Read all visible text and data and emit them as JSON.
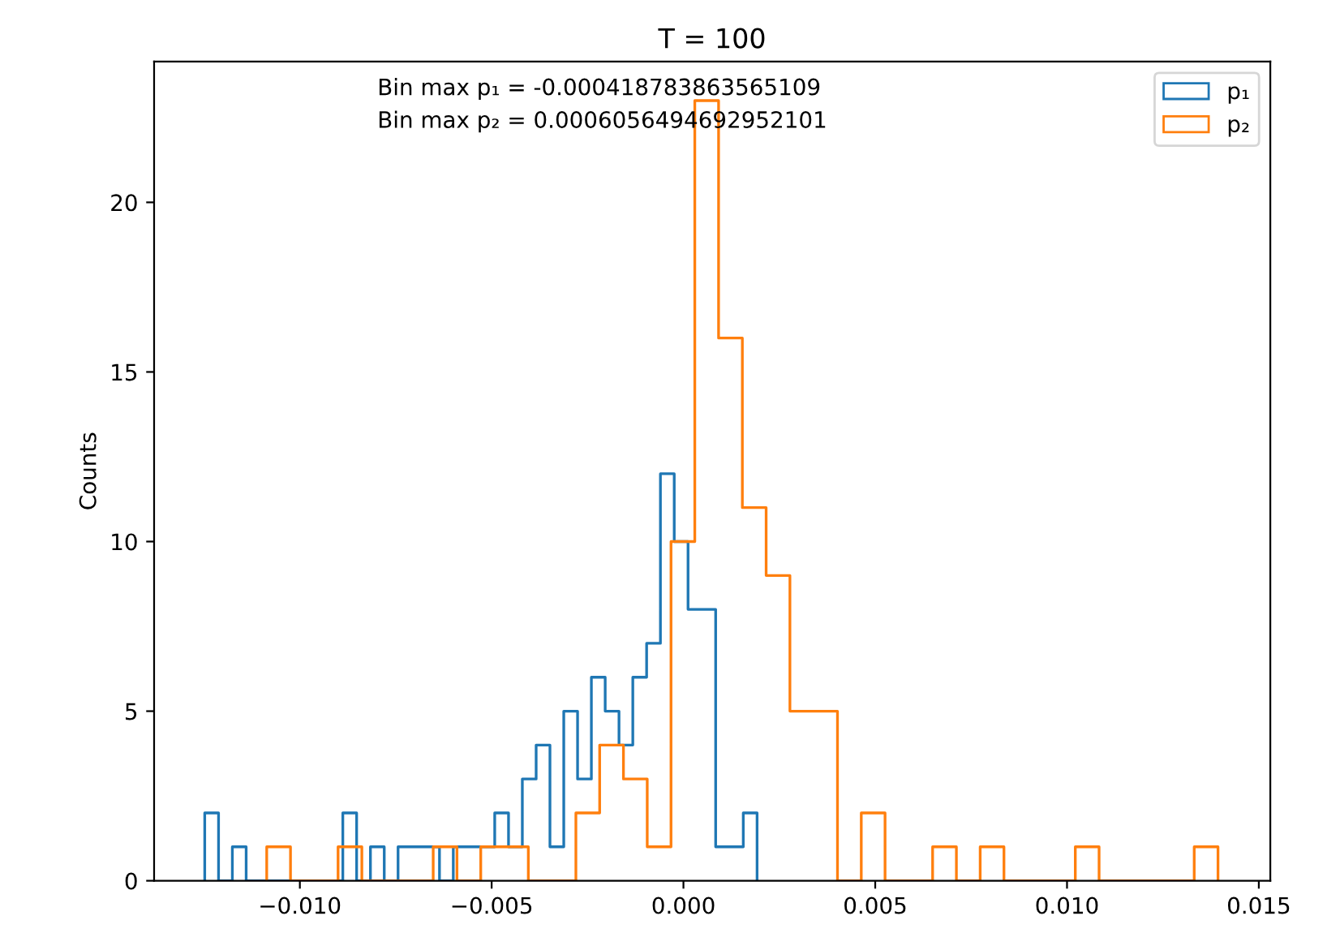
{
  "chart_data": {
    "type": "step",
    "title": "T = 100",
    "ylabel": "Counts",
    "annotations": [
      "Bin max p₁ = -0.000418783863565109",
      "Bin max p₂ = 0.0006056494692952101"
    ],
    "series": [
      {
        "name": "p₁",
        "color": "#1f77b4",
        "x": [
          -0.01248,
          -0.01248,
          -0.01212,
          -0.01176,
          -0.0114,
          -0.01104,
          -0.01068,
          -0.01032,
          -0.00996,
          -0.0096,
          -0.00924,
          -0.00888,
          -0.00852,
          -0.00816,
          -0.0078,
          -0.00744,
          -0.00708,
          -0.00672,
          -0.00636,
          -0.006,
          -0.00564,
          -0.00528,
          -0.00492,
          -0.00456,
          -0.0042,
          -0.00384,
          -0.00348,
          -0.00312,
          -0.00276,
          -0.0024,
          -0.00204,
          -0.00168,
          -0.00132,
          -0.00096,
          -0.0006,
          -0.00024,
          0.00012,
          0.00048,
          0.00084,
          0.0012,
          0.00156,
          0.00192
        ],
        "values": [
          0,
          2,
          0,
          1,
          0,
          0,
          0,
          0,
          0,
          0,
          0,
          2,
          0,
          1,
          0,
          1,
          1,
          1,
          0,
          1,
          1,
          1,
          2,
          1,
          3,
          4,
          1,
          5,
          3,
          6,
          5,
          4,
          6,
          7,
          12,
          10,
          8,
          8,
          1,
          1,
          2,
          0
        ]
      },
      {
        "name": "p₂",
        "color": "#ff7f0e",
        "x": [
          -0.010864,
          -0.010864,
          -0.010244,
          -0.009624,
          -0.009004,
          -0.008384,
          -0.007764,
          -0.007144,
          -0.006524,
          -0.005904,
          -0.005284,
          -0.004664,
          -0.004044,
          -0.003424,
          -0.002804,
          -0.002184,
          -0.001564,
          -0.000944,
          -0.000324,
          0.000296,
          0.000916,
          0.001536,
          0.002156,
          0.002776,
          0.003396,
          0.004016,
          0.004636,
          0.005256,
          0.005876,
          0.006496,
          0.007116,
          0.007736,
          0.008356,
          0.008976,
          0.009596,
          0.010216,
          0.010836,
          0.011456,
          0.012076,
          0.012696,
          0.013316,
          0.013936
        ],
        "values": [
          0,
          1,
          0,
          0,
          1,
          0,
          0,
          0,
          1,
          0,
          1,
          1,
          0,
          0,
          2,
          4,
          3,
          1,
          10,
          23,
          16,
          11,
          9,
          5,
          5,
          0,
          2,
          0,
          0,
          1,
          0,
          1,
          0,
          0,
          0,
          1,
          0,
          0,
          0,
          0,
          1,
          0
        ]
      }
    ],
    "xlim": [
      -0.0138,
      0.0153
    ],
    "ylim": [
      0,
      24.15
    ],
    "xticks": [
      {
        "value": -0.01,
        "label": "−0.010"
      },
      {
        "value": -0.005,
        "label": "−0.005"
      },
      {
        "value": 0,
        "label": "0.000"
      },
      {
        "value": 0.005,
        "label": "0.005"
      },
      {
        "value": 0.01,
        "label": "0.010"
      },
      {
        "value": 0.015,
        "label": "0.015"
      }
    ],
    "yticks": [
      0,
      5,
      10,
      15,
      20
    ],
    "grid": false,
    "legend": "top right"
  }
}
